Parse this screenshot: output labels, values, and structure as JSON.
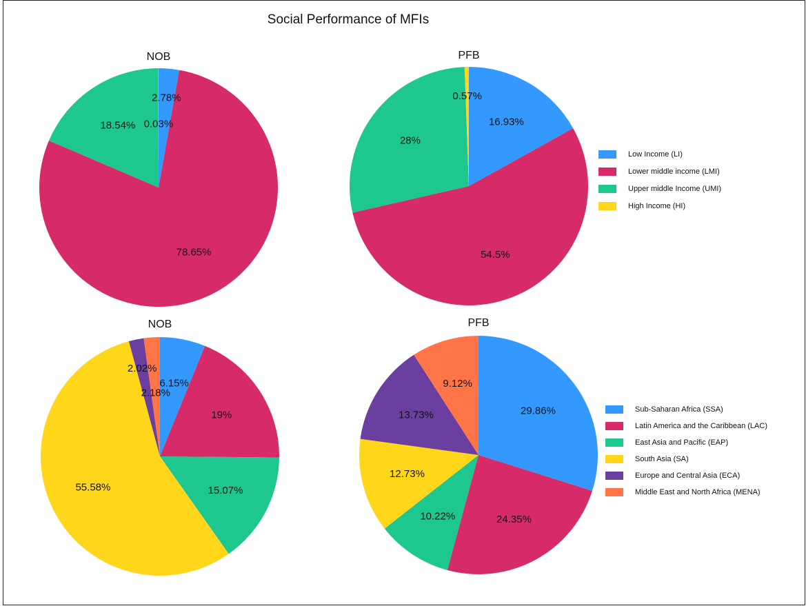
{
  "title": "Social Performance of MFIs",
  "chart_data": [
    {
      "type": "pie",
      "title": "NOB",
      "categories": [
        "Low Income (LI)",
        "Lower middle income (LMI)",
        "Upper middle Income (UMI)",
        "High Income (HI)"
      ],
      "values": [
        2.78,
        78.65,
        18.54,
        0.03
      ],
      "value_labels": [
        "2.78%",
        "78.65%",
        "18.54%",
        "0.03%"
      ],
      "colors": [
        "#3399ff",
        "#d62a69",
        "#1ec78e",
        "#ffd61a"
      ]
    },
    {
      "type": "pie",
      "title": "PFB",
      "categories": [
        "Low Income (LI)",
        "Lower middle income (LMI)",
        "Upper middle Income (UMI)",
        "High Income (HI)"
      ],
      "values": [
        16.93,
        54.5,
        28,
        0.57
      ],
      "value_labels": [
        "16.93%",
        "54.5%",
        "28%",
        "0.57%"
      ],
      "colors": [
        "#3399ff",
        "#d62a69",
        "#1ec78e",
        "#ffd61a"
      ],
      "legend": "right"
    },
    {
      "type": "pie",
      "title": "NOB",
      "categories": [
        "Sub-Saharan Africa (SSA)",
        "Latin America and the Caribbean (LAC)",
        "East Asia and Pacific (EAP)",
        "South Asia (SA)",
        "Europe and Central Asia (ECA)",
        "Middle East and North Africa (MENA)"
      ],
      "values": [
        6.15,
        19,
        15.07,
        55.58,
        2.02,
        2.18
      ],
      "value_labels": [
        "6.15%",
        "19%",
        "15.07%",
        "55.58%",
        "2.02%",
        "2.18%"
      ],
      "colors": [
        "#3399ff",
        "#d62a69",
        "#1ec78e",
        "#ffd61a",
        "#6a3fa0",
        "#ff7548"
      ]
    },
    {
      "type": "pie",
      "title": "PFB",
      "categories": [
        "Sub-Saharan Africa (SSA)",
        "Latin America and the Caribbean (LAC)",
        "East Asia and Pacific (EAP)",
        "South Asia (SA)",
        "Europe and Central Asia (ECA)",
        "Middle East and North Africa (MENA)"
      ],
      "values": [
        29.86,
        24.35,
        10.22,
        12.73,
        13.73,
        9.12
      ],
      "value_labels": [
        "29.86%",
        "24.35%",
        "10.22%",
        "12.73%",
        "13.73%",
        "9.12%"
      ],
      "colors": [
        "#3399ff",
        "#d62a69",
        "#1ec78e",
        "#ffd61a",
        "#6a3fa0",
        "#ff7548"
      ],
      "legend": "right"
    }
  ]
}
